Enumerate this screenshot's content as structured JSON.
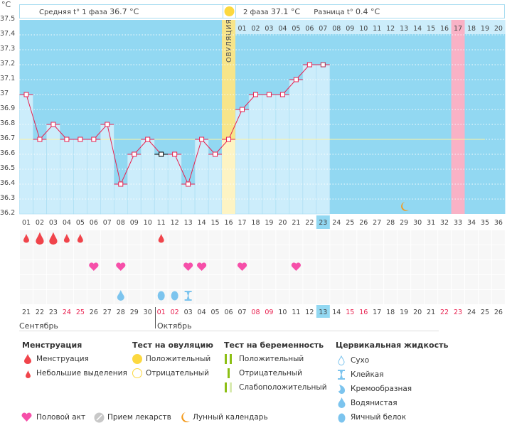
{
  "unit_label": "°C",
  "header": {
    "phase1": "Средняя t° 1 фаза",
    "phase1_value": "36.7 °C",
    "phase2": "2 фаза",
    "phase2_value": "37.1 °C",
    "diff": "Разница t°",
    "diff_value": "0.4 °C"
  },
  "ovulation_label": "ОВУЛЯЦИЯ",
  "colors": {
    "plot_bg": "#92d8f2",
    "bar": "#ccedfb",
    "line": "#e8204f",
    "ovulation": "#f7e58a",
    "expected_period": "#f9b2c6",
    "coverline": "#fff4a0"
  },
  "chart_data": {
    "type": "line",
    "title": "",
    "ylabel": "°C",
    "ylim": [
      36.2,
      37.5
    ],
    "yticks": [
      "37.5",
      "37.4",
      "37.3",
      "37.2",
      "37.1",
      "37",
      "36.9",
      "36.8",
      "36.7",
      "36.6",
      "36.5",
      "36.4",
      "36.3",
      "36.2"
    ],
    "cycle_days": [
      "01",
      "02",
      "03",
      "04",
      "05",
      "06",
      "07",
      "08",
      "09",
      "10",
      "11",
      "12",
      "13",
      "14",
      "15",
      "16",
      "17",
      "18",
      "19",
      "20",
      "21",
      "22",
      "23",
      "24",
      "25",
      "26",
      "27",
      "28",
      "29",
      "30",
      "31",
      "32",
      "33",
      "34",
      "35",
      "36"
    ],
    "temperatures": [
      37.0,
      36.7,
      36.8,
      36.7,
      36.7,
      36.7,
      36.8,
      36.4,
      36.6,
      36.7,
      36.6,
      36.6,
      36.4,
      36.7,
      36.6,
      36.7,
      36.9,
      37.0,
      37.0,
      37.0,
      37.1,
      37.2,
      37.2
    ],
    "coverline": 36.7,
    "ovulation_day": 16,
    "current_day": 23,
    "expected_period_day": 33,
    "moon_day": 29,
    "phase2_days": [
      "01",
      "02",
      "03",
      "04",
      "05",
      "06",
      "07",
      "08",
      "09",
      "10",
      "11",
      "12",
      "13",
      "14",
      "15",
      "16",
      "17",
      "18",
      "19",
      "20"
    ],
    "dates": [
      "21",
      "22",
      "23",
      "24",
      "25",
      "26",
      "27",
      "28",
      "29",
      "30",
      "01",
      "02",
      "03",
      "04",
      "05",
      "06",
      "07",
      "08",
      "09",
      "10",
      "11",
      "12",
      "13",
      "14",
      "15",
      "16",
      "17",
      "18",
      "19",
      "20",
      "21",
      "22",
      "23",
      "24",
      "25",
      "26"
    ],
    "weekend_date_index": [
      3,
      4,
      10,
      11,
      17,
      18,
      24,
      25,
      31,
      32
    ],
    "months": [
      "Сентябрь",
      "Октябрь"
    ],
    "menstruation": {
      "1": "small",
      "2": "large",
      "3": "large",
      "4": "small",
      "5": "small",
      "11": "small"
    },
    "intercourse_days": [
      6,
      8,
      13,
      14,
      17,
      21
    ],
    "cervical": {
      "8": "watery",
      "11": "eggwhite",
      "12": "eggwhite",
      "13": "sticky"
    }
  },
  "legend": {
    "menstruation": {
      "title": "Менструация",
      "items": [
        "Менструация",
        "Небольшие выделения"
      ]
    },
    "ovulation_test": {
      "title": "Тест на овуляцию",
      "items": [
        "Положительный",
        "Отрицательный"
      ]
    },
    "pregnancy_test": {
      "title": "Тест на беременность",
      "items": [
        "Положительный",
        "Отрицательный",
        "Слабоположительный"
      ]
    },
    "cervical": {
      "title": "Цервикальная жидкость",
      "items": [
        "Сухо",
        "Клейкая",
        "Кремообразная",
        "Водянистая",
        "Яичный белок"
      ]
    },
    "other": [
      "Половой акт",
      "Прием лекарств",
      "Лунный календарь"
    ]
  }
}
